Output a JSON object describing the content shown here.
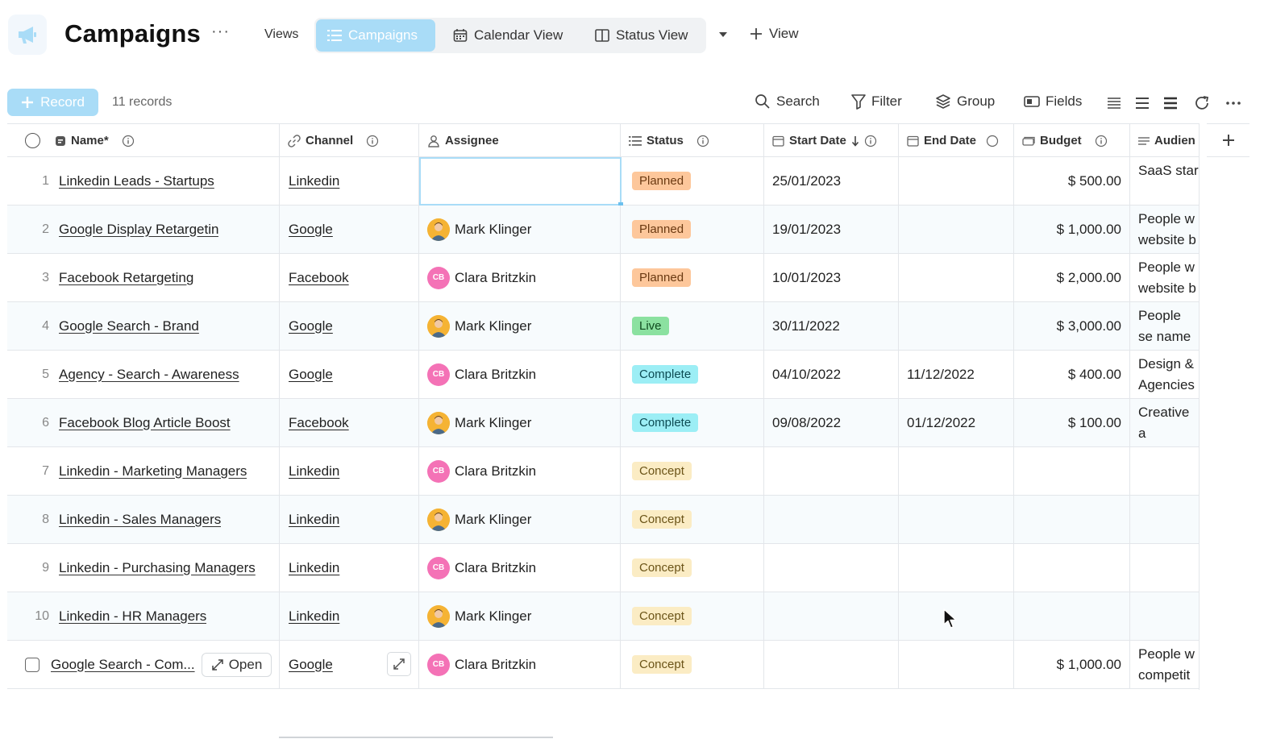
{
  "header": {
    "title": "Campaigns",
    "more": "···",
    "views_label": "Views",
    "tabs": [
      {
        "label": "Campaigns",
        "active": true,
        "icon": "list-icon"
      },
      {
        "label": "Calendar View",
        "active": false,
        "icon": "calendar-icon"
      },
      {
        "label": "Status View",
        "active": false,
        "icon": "kanban-icon"
      }
    ],
    "add_view_label": "View"
  },
  "toolbar": {
    "record_label": "Record",
    "record_count": "11 records",
    "search_label": "Search",
    "filter_label": "Filter",
    "group_label": "Group",
    "fields_label": "Fields"
  },
  "columns": {
    "name": "Name*",
    "channel": "Channel",
    "assignee": "Assignee",
    "status": "Status",
    "start": "Start Date",
    "end": "End Date",
    "budget": "Budget",
    "audience": "Audien"
  },
  "rows": [
    {
      "num": "1",
      "name": "Linkedin Leads - Startups",
      "channel": "Linkedin",
      "assignee": "",
      "avatar": "",
      "status": "Planned",
      "start": "25/01/2023",
      "end": "",
      "budget": "$ 500.00",
      "audience": "SaaS star"
    },
    {
      "num": "2",
      "name": "Google Display Retargetin",
      "channel": "Google",
      "assignee": "Mark Klinger",
      "avatar": "mk",
      "status": "Planned",
      "start": "19/01/2023",
      "end": "",
      "budget": "$ 1,000.00",
      "audience": "People w website b"
    },
    {
      "num": "3",
      "name": "Facebook Retargeting",
      "channel": "Facebook",
      "assignee": "Clara Britzkin",
      "avatar": "CB",
      "status": "Planned",
      "start": "10/01/2023",
      "end": "",
      "budget": "$ 2,000.00",
      "audience": "People w website b"
    },
    {
      "num": "4",
      "name": "Google Search - Brand",
      "channel": "Google",
      "assignee": "Mark Klinger",
      "avatar": "mk",
      "status": "Live",
      "start": "30/11/2022",
      "end": "",
      "budget": "$ 3,000.00",
      "audience": "People se name on"
    },
    {
      "num": "5",
      "name": "Agency - Search - Awareness",
      "channel": "Google",
      "assignee": "Clara Britzkin",
      "avatar": "CB",
      "status": "Complete",
      "start": "04/10/2022",
      "end": "11/12/2022",
      "budget": "$ 400.00",
      "audience": "Design & Agencies"
    },
    {
      "num": "6",
      "name": "Facebook Blog Article Boost",
      "channel": "Facebook",
      "assignee": "Mark Klinger",
      "avatar": "mk",
      "status": "Complete",
      "start": "09/08/2022",
      "end": "01/12/2022",
      "budget": "$ 100.00",
      "audience": "Creative a marketing"
    },
    {
      "num": "7",
      "name": "Linkedin - Marketing Managers",
      "channel": "Linkedin",
      "assignee": "Clara Britzkin",
      "avatar": "CB",
      "status": "Concept",
      "start": "",
      "end": "",
      "budget": "",
      "audience": ""
    },
    {
      "num": "8",
      "name": "Linkedin - Sales Managers",
      "channel": "Linkedin",
      "assignee": "Mark Klinger",
      "avatar": "mk",
      "status": "Concept",
      "start": "",
      "end": "",
      "budget": "",
      "audience": ""
    },
    {
      "num": "9",
      "name": "Linkedin - Purchasing Managers",
      "channel": "Linkedin",
      "assignee": "Clara Britzkin",
      "avatar": "CB",
      "status": "Concept",
      "start": "",
      "end": "",
      "budget": "",
      "audience": ""
    },
    {
      "num": "10",
      "name": "Linkedin - HR Managers",
      "channel": "Linkedin",
      "assignee": "Mark Klinger",
      "avatar": "mk",
      "status": "Concept",
      "start": "",
      "end": "",
      "budget": "",
      "audience": ""
    },
    {
      "num": "",
      "name": "Google Search - Com...",
      "channel": "Google",
      "assignee": "Clara Britzkin",
      "avatar": "CB",
      "status": "Concept",
      "start": "",
      "end": "",
      "budget": "$ 1,000.00",
      "audience": "People w competit"
    }
  ],
  "open_label": "Open",
  "colors": {
    "accent": "#a9dcf7",
    "planned": "#fdc79b",
    "live": "#8be1a0",
    "complete": "#9ceef5",
    "concept": "#fbecc4",
    "avatar_cb": "#f472b6",
    "avatar_mk": "#f5b334"
  }
}
